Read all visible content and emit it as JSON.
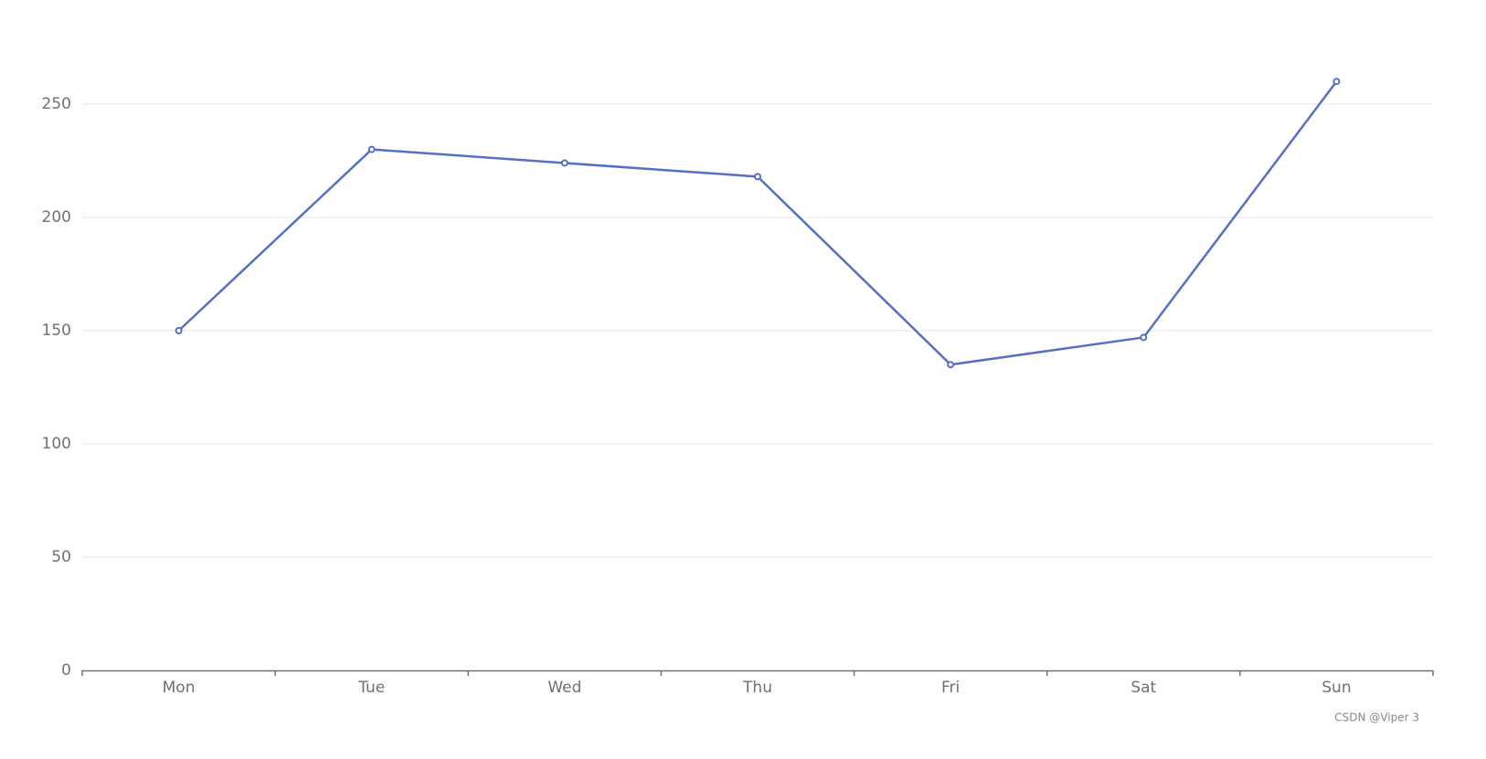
{
  "chart_data": {
    "type": "line",
    "categories": [
      "Mon",
      "Tue",
      "Wed",
      "Thu",
      "Fri",
      "Sat",
      "Sun"
    ],
    "series": [
      {
        "color": "#5470c6",
        "values": [
          150,
          230,
          224,
          218,
          135,
          147,
          260
        ]
      }
    ],
    "ylim": [
      0,
      250
    ],
    "yticks": [
      0,
      50,
      100,
      150,
      200,
      250
    ],
    "grid": true,
    "watermark": "CSDN @Viper 3"
  }
}
